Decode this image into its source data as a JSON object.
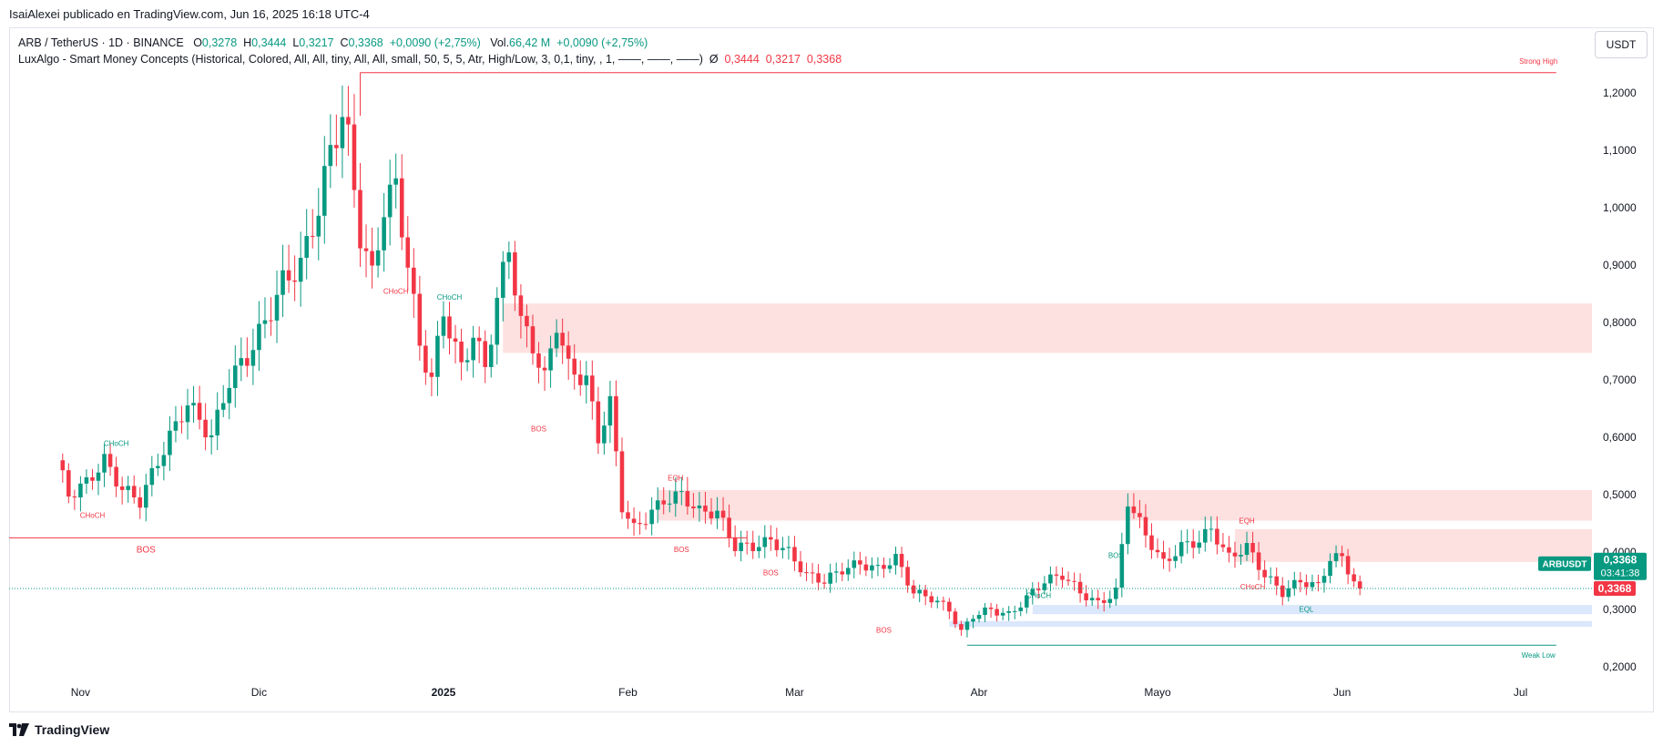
{
  "caption": "IsaiAlexei publicado en TradingView.com, Jun 16, 2025 16:18 UTC-4",
  "legend": {
    "symbol": "ARB / TetherUS · 1D · BINANCE",
    "o_label": "O",
    "o_value": "0,3278",
    "h_label": "H",
    "h_value": "0,3444",
    "l_label": "L",
    "l_value": "0,3217",
    "c_label": "C",
    "c_value": "0,3368",
    "change": "+0,0090 (+2,75%)",
    "vol_label": "Vol.",
    "vol_value": "66,42 M",
    "vol_change": "+0,0090 (+2,75%)",
    "indicator": "LuxAlgo - Smart Money Concepts (Historical, Colored, All, All, tiny, All, All, small, 50, 5, 5, Atr, High/Low, 3, 0,1, tiny, , 1, ——, ——, ——)",
    "indicator_symbol": "Ø",
    "ind_values": [
      "0,3444",
      "0,3217",
      "0,3368"
    ]
  },
  "currency_button": "USDT",
  "price_badge": {
    "ticker": "ARBUSDT",
    "price": "0,3368",
    "countdown": "03:41:38",
    "last": "0,3368"
  },
  "footer": {
    "brand": "TradingView"
  },
  "colors": {
    "up": "#089981",
    "down": "#f23645",
    "supply_zone": "#fde0e0",
    "demand_zone": "#dbe7fb",
    "grid_text": "#131722"
  },
  "chart_data": {
    "type": "candlestick",
    "symbol": "ARB / TetherUS",
    "timeframe": "1D",
    "y_axis": {
      "ticks": [
        1.2,
        1.1,
        1.0,
        0.9,
        0.8,
        0.7,
        0.6,
        0.5,
        0.4,
        0.3,
        0.2
      ],
      "tick_labels": [
        "1,2000",
        "1,1000",
        "1,0000",
        "0,9000",
        "0,8000",
        "0,7000",
        "0,6000",
        "0,5000",
        "0,4000",
        "0,3000",
        "0,2000"
      ],
      "range": [
        0.14,
        1.26
      ]
    },
    "x_axis": {
      "labels": [
        "Nov",
        "Dic",
        "2025",
        "Feb",
        "Mar",
        "Abr",
        "Mayo",
        "Jun",
        "Jul"
      ],
      "label_days": [
        4,
        34,
        65,
        96,
        124,
        155,
        185,
        216,
        246
      ],
      "day_range": [
        -8,
        258
      ]
    },
    "candles_anchor_close": [
      [
        0,
        0.56
      ],
      [
        2,
        0.5
      ],
      [
        5,
        0.52
      ],
      [
        8,
        0.56
      ],
      [
        11,
        0.51
      ],
      [
        14,
        0.49
      ],
      [
        18,
        0.58
      ],
      [
        22,
        0.66
      ],
      [
        26,
        0.6
      ],
      [
        29,
        0.7
      ],
      [
        32,
        0.74
      ],
      [
        35,
        0.8
      ],
      [
        38,
        0.87
      ],
      [
        41,
        0.9
      ],
      [
        44,
        1.0
      ],
      [
        46,
        1.1
      ],
      [
        48,
        1.16
      ],
      [
        49,
        1.12
      ],
      [
        51,
        0.95
      ],
      [
        53,
        0.88
      ],
      [
        55,
        1.0
      ],
      [
        57,
        1.04
      ],
      [
        59,
        0.9
      ],
      [
        61,
        0.76
      ],
      [
        63,
        0.7
      ],
      [
        65,
        0.82
      ],
      [
        68,
        0.72
      ],
      [
        70,
        0.78
      ],
      [
        72,
        0.72
      ],
      [
        74,
        0.84
      ],
      [
        76,
        0.93
      ],
      [
        78,
        0.8
      ],
      [
        80,
        0.76
      ],
      [
        82,
        0.7
      ],
      [
        84,
        0.8
      ],
      [
        86,
        0.72
      ],
      [
        89,
        0.7
      ],
      [
        91,
        0.6
      ],
      [
        93,
        0.66
      ],
      [
        95,
        0.48
      ],
      [
        97,
        0.44
      ],
      [
        99,
        0.46
      ],
      [
        102,
        0.49
      ],
      [
        105,
        0.5
      ],
      [
        108,
        0.47
      ],
      [
        111,
        0.47
      ],
      [
        114,
        0.41
      ],
      [
        117,
        0.41
      ],
      [
        120,
        0.42
      ],
      [
        123,
        0.4
      ],
      [
        126,
        0.36
      ],
      [
        129,
        0.35
      ],
      [
        132,
        0.37
      ],
      [
        135,
        0.38
      ],
      [
        138,
        0.37
      ],
      [
        141,
        0.39
      ],
      [
        144,
        0.33
      ],
      [
        147,
        0.32
      ],
      [
        150,
        0.3
      ],
      [
        152,
        0.26
      ],
      [
        154,
        0.29
      ],
      [
        157,
        0.3
      ],
      [
        160,
        0.29
      ],
      [
        163,
        0.32
      ],
      [
        166,
        0.35
      ],
      [
        169,
        0.36
      ],
      [
        172,
        0.33
      ],
      [
        175,
        0.31
      ],
      [
        178,
        0.33
      ],
      [
        180,
        0.49
      ],
      [
        183,
        0.43
      ],
      [
        186,
        0.38
      ],
      [
        189,
        0.41
      ],
      [
        192,
        0.42
      ],
      [
        194,
        0.44
      ],
      [
        197,
        0.39
      ],
      [
        200,
        0.41
      ],
      [
        203,
        0.36
      ],
      [
        206,
        0.33
      ],
      [
        209,
        0.35
      ],
      [
        212,
        0.34
      ],
      [
        214,
        0.39
      ],
      [
        216,
        0.39
      ],
      [
        218,
        0.35
      ],
      [
        219,
        0.3368
      ]
    ],
    "levels": [
      {
        "label": "Strong High",
        "price": 1.235
      },
      {
        "label": "Weak Low",
        "price": 0.238
      },
      {
        "label": "BOS",
        "price": 0.425
      }
    ],
    "structure_labels": [
      "CHoCH",
      "CHoCH",
      "CHoCH",
      "CHoCH",
      "BOS",
      "EQH",
      "BOS",
      "BOS",
      "BOS",
      "CHoCH",
      "BOS",
      "EQH",
      "CHoCH",
      "EQL"
    ],
    "zones": [
      {
        "type": "supply",
        "from_day": 75,
        "top": 0.833,
        "bottom": 0.747
      },
      {
        "type": "supply",
        "from_day": 101,
        "top": 0.508,
        "bottom": 0.455
      },
      {
        "type": "supply",
        "from_day": 198,
        "top": 0.44,
        "bottom": 0.383
      },
      {
        "type": "demand",
        "from_day": 164,
        "top": 0.308,
        "bottom": 0.292
      },
      {
        "type": "demand",
        "from_day": 150,
        "top": 0.28,
        "bottom": 0.27
      }
    ],
    "last_price": 0.3368
  }
}
